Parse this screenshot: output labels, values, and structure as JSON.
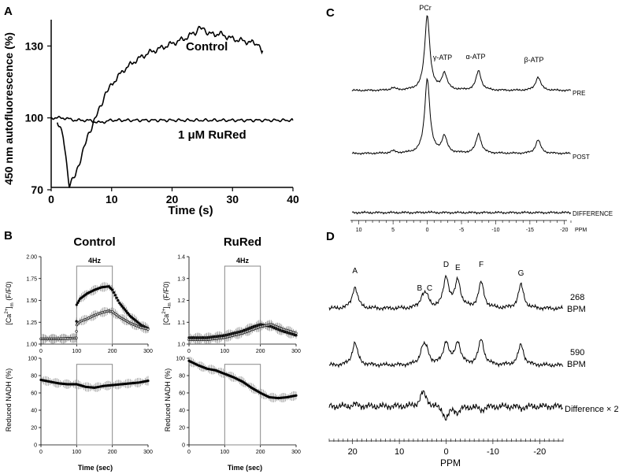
{
  "panels": {
    "A": {
      "letter": "A",
      "ylabel": "450 nm autofluorescence (%)",
      "xlabel": "Time (s)",
      "xticks": [
        "0",
        "10",
        "20",
        "30",
        "40"
      ],
      "yticks": [
        "70",
        "100",
        "130"
      ],
      "series_labels": {
        "control": "Control",
        "rured": "1 μM RuRed"
      }
    },
    "B": {
      "letter": "B",
      "titles": {
        "control": "Control",
        "rured": "RuRed"
      },
      "stim_label": "4Hz",
      "ylabel_top_prefix": "[Ca",
      "ylabel_top_sup": "2+",
      "ylabel_top_close": "]",
      "ylabel_top_sub": "m",
      "ylabel_top_suffix": " (F/F0)",
      "ylabel_bottom": "Reduced NADH (%)",
      "xlabel": "Time (sec)",
      "xticks": [
        "0",
        "100",
        "200",
        "300"
      ],
      "ca_control_yticks": [
        "1.00",
        "1.25",
        "1.50",
        "1.75",
        "2.00"
      ],
      "ca_rured_yticks": [
        "1.0",
        "1.1",
        "1.2",
        "1.3",
        "1.4"
      ],
      "nadh_yticks": [
        "0",
        "20",
        "40",
        "60",
        "80",
        "100"
      ]
    },
    "C": {
      "letter": "C",
      "peak_labels": {
        "pcr": "PCr",
        "gamma": "γ-ATP",
        "alpha": "α-ATP",
        "beta": "β-ATP"
      },
      "trace_labels": {
        "pre": "PRE",
        "post": "POST",
        "diff": "DIFFERENCE"
      },
      "axis_label": "PPM",
      "xticks": [
        "10",
        "5",
        "0",
        "-5",
        "-10",
        "-15",
        "-20"
      ]
    },
    "D": {
      "letter": "D",
      "peak_labels": [
        "A",
        "B",
        "C",
        "D",
        "E",
        "F",
        "G"
      ],
      "trace_labels": {
        "top_num": "268",
        "top_unit": "BPM",
        "mid_num": "590",
        "mid_unit": "BPM",
        "diff": "Difference × 2"
      },
      "axis_label": "PPM",
      "xticks": [
        "20",
        "10",
        "0",
        "-10",
        "-20"
      ]
    }
  },
  "chart_data": [
    {
      "panel": "A",
      "type": "line",
      "xlabel": "Time (s)",
      "ylabel": "450 nm autofluorescence (%)",
      "xlim": [
        0,
        40
      ],
      "ylim": [
        70,
        140
      ],
      "series": [
        {
          "name": "Control",
          "x": [
            1,
            2,
            3,
            4,
            5,
            6,
            7,
            8,
            9,
            10,
            12,
            14,
            16,
            18,
            20,
            22,
            24,
            25,
            26,
            28,
            30,
            32,
            34,
            35
          ],
          "y": [
            99,
            92,
            72,
            76,
            84,
            92,
            98,
            104,
            110,
            114,
            120,
            124,
            127,
            129,
            131,
            133,
            136,
            138,
            135,
            135,
            133,
            132,
            131,
            128
          ]
        },
        {
          "name": "1 μM RuRed",
          "x": [
            0,
            2,
            4,
            6,
            8,
            10,
            15,
            20,
            25,
            30,
            35,
            40
          ],
          "y": [
            100,
            100,
            99,
            99,
            98,
            99,
            99,
            99,
            99,
            99,
            99,
            99
          ]
        }
      ]
    },
    {
      "panel": "B-control-Ca",
      "type": "line",
      "title": "Control",
      "xlabel": "Time (sec)",
      "xlim": [
        0,
        300
      ],
      "ylim": [
        1.0,
        2.0
      ],
      "stimulus": {
        "label": "4Hz",
        "start": 100,
        "end": 200
      },
      "series": [
        {
          "x": [
            0,
            50,
            99,
            100,
            110,
            130,
            150,
            170,
            190,
            200,
            220,
            250,
            280,
            300
          ],
          "y": [
            1.06,
            1.06,
            1.07,
            1.45,
            1.52,
            1.58,
            1.62,
            1.65,
            1.66,
            1.62,
            1.47,
            1.32,
            1.22,
            1.18
          ]
        },
        {
          "x": [
            0,
            50,
            99,
            100,
            110,
            130,
            150,
            170,
            190,
            200,
            220,
            250,
            280,
            300
          ],
          "y": [
            1.06,
            1.06,
            1.07,
            1.22,
            1.26,
            1.29,
            1.33,
            1.36,
            1.38,
            1.37,
            1.31,
            1.24,
            1.19,
            1.17
          ]
        }
      ]
    },
    {
      "panel": "B-rured-Ca",
      "type": "line",
      "title": "RuRed",
      "xlabel": "Time (sec)",
      "xlim": [
        0,
        300
      ],
      "ylim": [
        1.0,
        1.4
      ],
      "stimulus": {
        "label": "4Hz",
        "start": 100,
        "end": 200
      },
      "series": [
        {
          "x": [
            0,
            50,
            100,
            150,
            180,
            200,
            230,
            260,
            300
          ],
          "y": [
            1.03,
            1.03,
            1.04,
            1.06,
            1.08,
            1.09,
            1.08,
            1.06,
            1.04
          ]
        },
        {
          "x": [
            0,
            50,
            100,
            150,
            200,
            230,
            260,
            300
          ],
          "y": [
            1.02,
            1.02,
            1.03,
            1.05,
            1.08,
            1.09,
            1.07,
            1.05
          ]
        }
      ]
    },
    {
      "panel": "B-control-NADH",
      "type": "line",
      "xlabel": "Time (sec)",
      "ylabel": "Reduced NADH (%)",
      "xlim": [
        0,
        300
      ],
      "ylim": [
        0,
        100
      ],
      "stimulus": {
        "start": 100,
        "end": 200
      },
      "series": [
        {
          "x": [
            0,
            25,
            50,
            75,
            100,
            125,
            150,
            175,
            200,
            225,
            250,
            275,
            300
          ],
          "y": [
            75,
            73,
            71,
            70,
            70,
            67,
            66,
            68,
            69,
            70,
            71,
            72,
            74
          ]
        }
      ]
    },
    {
      "panel": "B-rured-NADH",
      "type": "line",
      "xlabel": "Time (sec)",
      "ylabel": "Reduced NADH (%)",
      "xlim": [
        0,
        300
      ],
      "ylim": [
        0,
        100
      ],
      "stimulus": {
        "start": 100,
        "end": 200
      },
      "series": [
        {
          "x": [
            0,
            25,
            50,
            75,
            100,
            125,
            150,
            175,
            200,
            225,
            250,
            275,
            300
          ],
          "y": [
            97,
            92,
            88,
            86,
            82,
            78,
            73,
            66,
            60,
            55,
            54,
            55,
            57
          ]
        }
      ]
    },
    {
      "panel": "C",
      "type": "line",
      "xlabel": "PPM",
      "xlim": [
        11,
        -21
      ],
      "peaks_ppm": {
        "PCr": 0,
        "γ-ATP": -2.5,
        "α-ATP": -7.5,
        "β-ATP": -16.2
      },
      "series": [
        {
          "name": "PRE",
          "peak_heights": {
            "PCr": 1.0,
            "γ-ATP": 0.22,
            "α-ATP": 0.26,
            "β-ATP": 0.18
          }
        },
        {
          "name": "POST",
          "peak_heights": {
            "PCr": 1.0,
            "γ-ATP": 0.22,
            "α-ATP": 0.26,
            "β-ATP": 0.18
          }
        },
        {
          "name": "DIFFERENCE",
          "peak_heights": {
            "PCr": 0.01,
            "γ-ATP": 0,
            "α-ATP": 0,
            "β-ATP": 0
          }
        }
      ]
    },
    {
      "panel": "D",
      "type": "line",
      "xlabel": "PPM",
      "xlim": [
        25,
        -25
      ],
      "peaks_ppm": {
        "A": 19.5,
        "B": 5.0,
        "C": 4.2,
        "D": 0.0,
        "E": -2.5,
        "F": -7.5,
        "G": -16.0
      },
      "series": [
        {
          "name": "268 BPM",
          "peak_heights": {
            "A": 0.55,
            "B": 0.25,
            "C": 0.25,
            "D": 0.78,
            "E": 0.7,
            "F": 0.65,
            "G": 0.6
          }
        },
        {
          "name": "590 BPM",
          "peak_heights": {
            "A": 0.55,
            "B": 0.35,
            "C": 0.3,
            "D": 0.55,
            "E": 0.55,
            "F": 0.62,
            "G": 0.5
          }
        },
        {
          "name": "Difference × 2",
          "peak_heights": {
            "A": 0.05,
            "B": 0.35,
            "C": 0.1,
            "D": -0.35,
            "E": -0.15,
            "F": -0.1,
            "G": -0.05
          }
        }
      ]
    }
  ]
}
